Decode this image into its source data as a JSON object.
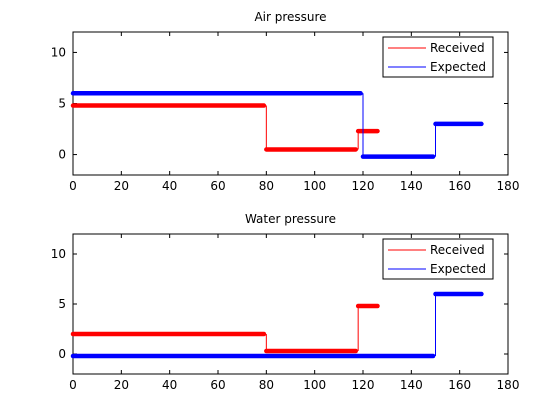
{
  "chart_data": [
    {
      "type": "line",
      "title": "Air pressure",
      "xlim": [
        0,
        180
      ],
      "ylim": [
        -2,
        12
      ],
      "xticks": [
        0,
        20,
        40,
        60,
        80,
        100,
        120,
        140,
        160,
        180
      ],
      "yticks": [
        0,
        5,
        10
      ],
      "grid": false,
      "legend_position": "top-right",
      "series": [
        {
          "name": "Received",
          "color": "#ff0000",
          "segments": [
            {
              "x": [
                0,
                79
              ],
              "y": [
                4.8,
                4.8
              ]
            },
            {
              "x": [
                80,
                80
              ],
              "y": [
                4.8,
                0.5
              ]
            },
            {
              "x": [
                80,
                117
              ],
              "y": [
                0.5,
                0.5
              ]
            },
            {
              "x": [
                118,
                118
              ],
              "y": [
                0.5,
                2.3
              ]
            },
            {
              "x": [
                118,
                126
              ],
              "y": [
                2.3,
                2.3
              ]
            }
          ]
        },
        {
          "name": "Expected",
          "color": "#0000ff",
          "segments": [
            {
              "x": [
                0,
                119
              ],
              "y": [
                6,
                6
              ]
            },
            {
              "x": [
                120,
                120
              ],
              "y": [
                6,
                -0.2
              ]
            },
            {
              "x": [
                120,
                149
              ],
              "y": [
                -0.2,
                -0.2
              ]
            },
            {
              "x": [
                150,
                150
              ],
              "y": [
                -0.2,
                3
              ]
            },
            {
              "x": [
                150,
                169
              ],
              "y": [
                3,
                3
              ]
            }
          ]
        }
      ]
    },
    {
      "type": "line",
      "title": "Water pressure",
      "xlim": [
        0,
        180
      ],
      "ylim": [
        -2,
        12
      ],
      "xticks": [
        0,
        20,
        40,
        60,
        80,
        100,
        120,
        140,
        160,
        180
      ],
      "yticks": [
        0,
        5,
        10
      ],
      "grid": false,
      "legend_position": "top-right",
      "series": [
        {
          "name": "Received",
          "color": "#ff0000",
          "segments": [
            {
              "x": [
                0,
                79
              ],
              "y": [
                2,
                2
              ]
            },
            {
              "x": [
                80,
                80
              ],
              "y": [
                2,
                0.3
              ]
            },
            {
              "x": [
                80,
                117
              ],
              "y": [
                0.3,
                0.3
              ]
            },
            {
              "x": [
                118,
                118
              ],
              "y": [
                0.3,
                4.8
              ]
            },
            {
              "x": [
                118,
                126
              ],
              "y": [
                4.8,
                4.8
              ]
            }
          ]
        },
        {
          "name": "Expected",
          "color": "#0000ff",
          "segments": [
            {
              "x": [
                0,
                149
              ],
              "y": [
                -0.2,
                -0.2
              ]
            },
            {
              "x": [
                150,
                150
              ],
              "y": [
                -0.2,
                6
              ]
            },
            {
              "x": [
                150,
                169
              ],
              "y": [
                6,
                6
              ]
            }
          ]
        }
      ]
    }
  ]
}
